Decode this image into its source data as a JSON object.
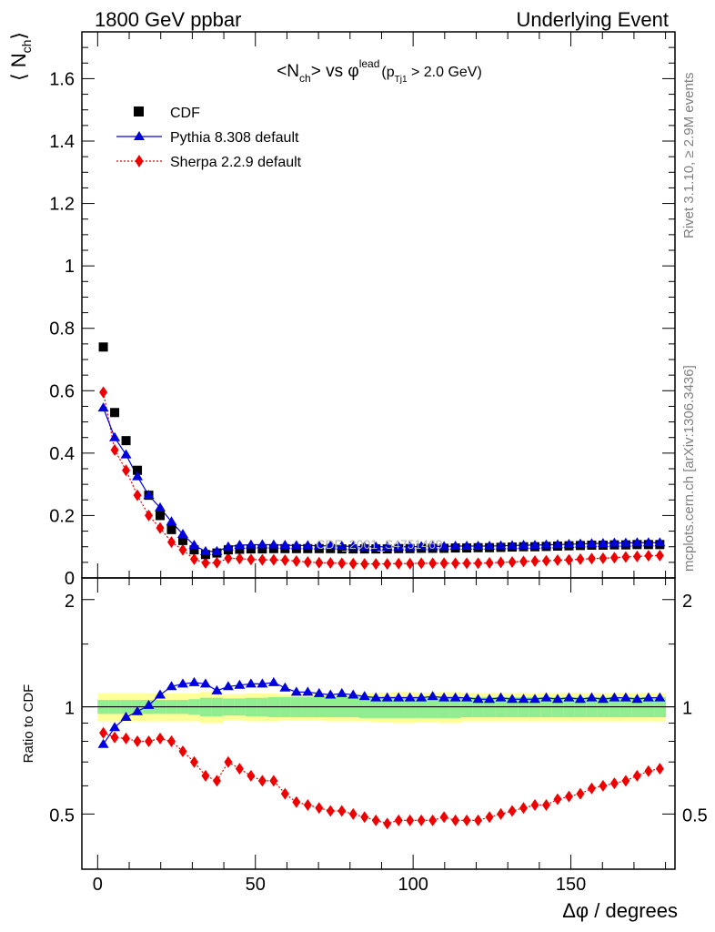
{
  "header": {
    "left": "1800 GeV ppbar",
    "right": "Underlying Event"
  },
  "main_plot": {
    "title_parts": [
      "<N",
      "ch",
      "> vs ",
      "φ",
      "lead",
      "(p",
      "Tj1",
      " > 2.0 GeV)"
    ],
    "ylabel_parts": [
      "⟨ N",
      "ch",
      "⟩"
    ],
    "watermark": "CDF_2001_S4751469"
  },
  "ratio_plot": {
    "ylabel": "Ratio to CDF"
  },
  "xlabel": "Δφ / degrees",
  "side_text": {
    "rivet": "Rivet 3.1.10, ≥ 2.9M events",
    "mcplots": "mcplots.cern.ch [arXiv:1306.3436]"
  },
  "legend": [
    {
      "label": "CDF",
      "marker": "square",
      "color": "#000000"
    },
    {
      "label": "Pythia 8.308 default",
      "marker": "triangle",
      "color": "#0000dd"
    },
    {
      "label": "Sherpa 2.2.9 default",
      "marker": "diamond",
      "color": "#ee0000"
    }
  ],
  "colors": {
    "cdf": "#000000",
    "pythia": "#0000dd",
    "sherpa": "#ee0000",
    "band_inner": "#90ee90",
    "band_outer": "#ffff99"
  },
  "chart_data": [
    {
      "type": "scatter",
      "panel": "main",
      "title": "<Nch> vs φlead (pTj1 > 2.0 GeV)",
      "xlabel": "Δφ / degrees",
      "ylabel": "⟨ Nch⟩",
      "xlim": [
        -5,
        183
      ],
      "ylim": [
        0,
        1.75
      ],
      "xticks": [
        0,
        50,
        100,
        150
      ],
      "yticks": [
        0,
        0.2,
        0.4,
        0.6,
        0.8,
        1,
        1.2,
        1.4,
        1.6
      ],
      "ytick_labels": [
        "0",
        "0.2",
        "0.4",
        "0.6",
        "0.8",
        "1",
        "1.2",
        "1.4",
        "1.6"
      ],
      "legend_position": "top-left",
      "x": [
        1.8,
        5.4,
        9.0,
        12.6,
        16.2,
        19.8,
        23.4,
        27.0,
        30.6,
        34.2,
        37.8,
        41.4,
        45.0,
        48.6,
        52.2,
        55.8,
        59.4,
        63.0,
        66.6,
        70.2,
        73.8,
        77.4,
        81.0,
        84.6,
        88.2,
        91.8,
        95.4,
        99.0,
        102.6,
        106.2,
        109.8,
        113.4,
        117.0,
        120.6,
        124.2,
        127.8,
        131.4,
        135.0,
        138.6,
        142.2,
        145.8,
        149.4,
        153.0,
        156.6,
        160.2,
        163.8,
        167.4,
        171.0,
        174.6,
        178.2
      ],
      "series": [
        {
          "name": "CDF",
          "values": [
            0.74,
            0.53,
            0.44,
            0.345,
            0.265,
            0.2,
            0.155,
            0.12,
            0.09,
            0.075,
            0.08,
            0.09,
            0.092,
            0.093,
            0.093,
            0.094,
            0.094,
            0.094,
            0.094,
            0.094,
            0.094,
            0.093,
            0.093,
            0.093,
            0.093,
            0.093,
            0.094,
            0.094,
            0.095,
            0.095,
            0.095,
            0.096,
            0.096,
            0.097,
            0.097,
            0.098,
            0.099,
            0.1,
            0.1,
            0.101,
            0.102,
            0.103,
            0.104,
            0.105,
            0.105,
            0.106,
            0.106,
            0.107,
            0.107,
            0.107
          ]
        },
        {
          "name": "Pythia 8.308 default",
          "values": [
            0.545,
            0.45,
            0.395,
            0.325,
            0.265,
            0.225,
            0.18,
            0.14,
            0.105,
            0.085,
            0.085,
            0.1,
            0.105,
            0.106,
            0.107,
            0.106,
            0.105,
            0.104,
            0.104,
            0.103,
            0.103,
            0.102,
            0.101,
            0.1,
            0.1,
            0.1,
            0.1,
            0.1,
            0.101,
            0.101,
            0.101,
            0.102,
            0.102,
            0.102,
            0.102,
            0.103,
            0.104,
            0.105,
            0.105,
            0.106,
            0.107,
            0.108,
            0.109,
            0.11,
            0.111,
            0.112,
            0.112,
            0.113,
            0.113,
            0.113
          ]
        },
        {
          "name": "Sherpa 2.2.9 default",
          "values": [
            0.595,
            0.41,
            0.345,
            0.265,
            0.2,
            0.16,
            0.115,
            0.09,
            0.06,
            0.048,
            0.049,
            0.063,
            0.062,
            0.059,
            0.058,
            0.058,
            0.057,
            0.054,
            0.051,
            0.049,
            0.048,
            0.047,
            0.046,
            0.045,
            0.045,
            0.045,
            0.046,
            0.046,
            0.047,
            0.047,
            0.047,
            0.047,
            0.047,
            0.047,
            0.048,
            0.05,
            0.051,
            0.053,
            0.054,
            0.055,
            0.057,
            0.058,
            0.06,
            0.062,
            0.063,
            0.065,
            0.067,
            0.069,
            0.071,
            0.072
          ]
        }
      ]
    },
    {
      "type": "scatter",
      "panel": "ratio",
      "xlabel": "Δφ / degrees",
      "ylabel": "Ratio to CDF",
      "xlim": [
        -5,
        183
      ],
      "ylim": [
        0.35,
        2.3
      ],
      "xticks": [
        0,
        50,
        100,
        150
      ],
      "xtick_labels": [
        "0",
        "50",
        "100",
        "150"
      ],
      "yticks": [
        0.5,
        1,
        2
      ],
      "ytick_labels": [
        "0.5",
        "1",
        "2"
      ],
      "reference_line": 1,
      "x": [
        1.8,
        5.4,
        9.0,
        12.6,
        16.2,
        19.8,
        23.4,
        27.0,
        30.6,
        34.2,
        37.8,
        41.4,
        45.0,
        48.6,
        52.2,
        55.8,
        59.4,
        63.0,
        66.6,
        70.2,
        73.8,
        77.4,
        81.0,
        84.6,
        88.2,
        91.8,
        95.4,
        99.0,
        102.6,
        106.2,
        109.8,
        113.4,
        117.0,
        120.6,
        124.2,
        127.8,
        131.4,
        135.0,
        138.6,
        142.2,
        145.8,
        149.4,
        153.0,
        156.6,
        160.2,
        163.8,
        167.4,
        171.0,
        174.6,
        178.2
      ],
      "band_inner_halfwidth": [
        0.045,
        0.045,
        0.045,
        0.045,
        0.045,
        0.045,
        0.045,
        0.045,
        0.05,
        0.06,
        0.06,
        0.055,
        0.055,
        0.06,
        0.06,
        0.065,
        0.065,
        0.065,
        0.065,
        0.065,
        0.065,
        0.065,
        0.065,
        0.07,
        0.07,
        0.07,
        0.07,
        0.07,
        0.07,
        0.07,
        0.07,
        0.07,
        0.065,
        0.065,
        0.065,
        0.065,
        0.065,
        0.065,
        0.065,
        0.065,
        0.065,
        0.065,
        0.065,
        0.065,
        0.065,
        0.065,
        0.065,
        0.065,
        0.065,
        0.065
      ],
      "band_outer_halfwidth": [
        0.09,
        0.09,
        0.09,
        0.09,
        0.09,
        0.09,
        0.09,
        0.09,
        0.09,
        0.1,
        0.1,
        0.085,
        0.085,
        0.09,
        0.09,
        0.09,
        0.085,
        0.085,
        0.085,
        0.085,
        0.09,
        0.09,
        0.09,
        0.09,
        0.095,
        0.095,
        0.1,
        0.1,
        0.095,
        0.095,
        0.1,
        0.1,
        0.09,
        0.09,
        0.09,
        0.09,
        0.09,
        0.09,
        0.09,
        0.09,
        0.09,
        0.09,
        0.09,
        0.09,
        0.09,
        0.09,
        0.09,
        0.09,
        0.09,
        0.09
      ],
      "series": [
        {
          "name": "Pythia 8.308 default",
          "values": [
            0.785,
            0.875,
            0.935,
            0.97,
            1.01,
            1.08,
            1.14,
            1.16,
            1.17,
            1.16,
            1.11,
            1.14,
            1.15,
            1.16,
            1.16,
            1.17,
            1.13,
            1.1,
            1.1,
            1.09,
            1.08,
            1.09,
            1.08,
            1.07,
            1.06,
            1.06,
            1.06,
            1.06,
            1.06,
            1.07,
            1.06,
            1.06,
            1.06,
            1.05,
            1.05,
            1.06,
            1.05,
            1.05,
            1.05,
            1.06,
            1.05,
            1.06,
            1.05,
            1.06,
            1.05,
            1.06,
            1.06,
            1.05,
            1.06,
            1.06
          ]
        },
        {
          "name": "Sherpa 2.2.9 default",
          "values": [
            0.845,
            0.82,
            0.815,
            0.8,
            0.8,
            0.815,
            0.8,
            0.75,
            0.7,
            0.64,
            0.62,
            0.7,
            0.67,
            0.64,
            0.62,
            0.62,
            0.57,
            0.54,
            0.53,
            0.52,
            0.51,
            0.51,
            0.5,
            0.49,
            0.48,
            0.47,
            0.48,
            0.48,
            0.48,
            0.48,
            0.49,
            0.48,
            0.48,
            0.48,
            0.49,
            0.5,
            0.51,
            0.52,
            0.53,
            0.53,
            0.55,
            0.56,
            0.57,
            0.59,
            0.6,
            0.61,
            0.62,
            0.64,
            0.66,
            0.67
          ]
        }
      ]
    }
  ]
}
